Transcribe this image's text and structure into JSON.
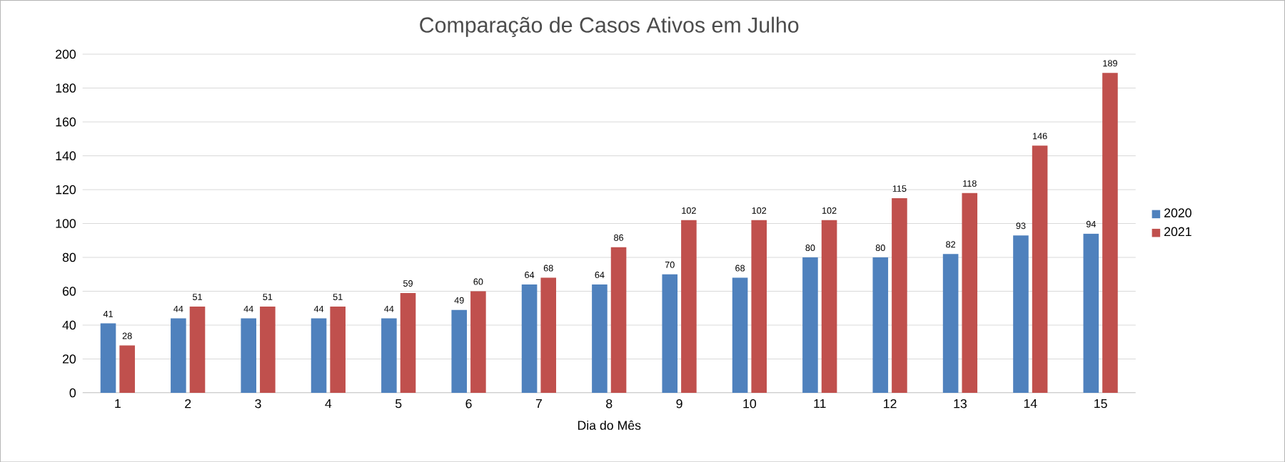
{
  "chart_data": {
    "type": "bar",
    "title": "Comparação de Casos Ativos em Julho",
    "xlabel": "Dia do Mês",
    "categories": [
      "1",
      "2",
      "3",
      "4",
      "5",
      "6",
      "7",
      "8",
      "9",
      "10",
      "11",
      "12",
      "13",
      "14",
      "15"
    ],
    "series": [
      {
        "name": "2020",
        "color": "#4f81bd",
        "values": [
          41,
          44,
          44,
          44,
          44,
          49,
          64,
          64,
          70,
          68,
          80,
          80,
          82,
          93,
          94
        ]
      },
      {
        "name": "2021",
        "color": "#c0504d",
        "values": [
          28,
          51,
          51,
          51,
          59,
          60,
          68,
          86,
          102,
          102,
          102,
          115,
          118,
          146,
          189
        ]
      }
    ],
    "ylim": [
      0,
      200
    ],
    "yticks": [
      0,
      20,
      40,
      60,
      80,
      100,
      120,
      140,
      160,
      180,
      200
    ],
    "grid": "y",
    "legend": "right",
    "data_labels": true
  }
}
